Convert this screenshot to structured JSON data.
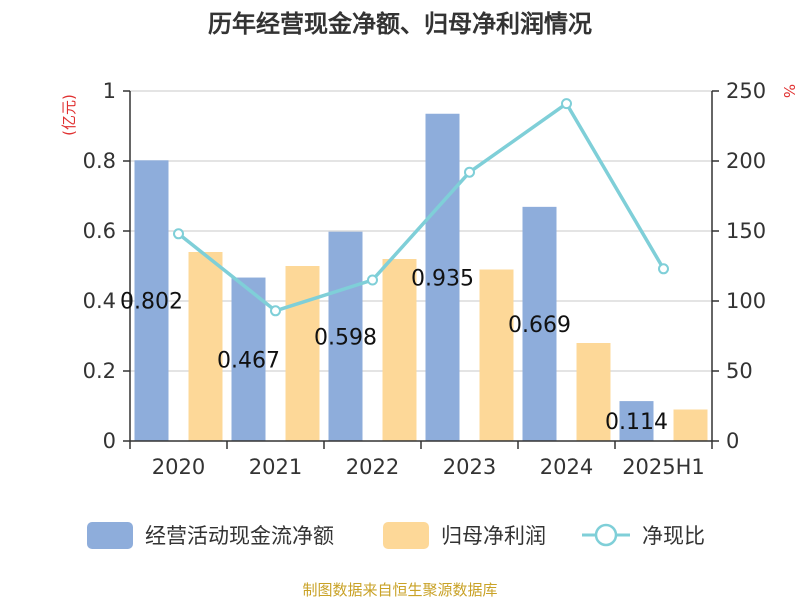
{
  "chart_data": {
    "type": "bar",
    "title": "历年经营现金净额、归母净利润情况",
    "categories": [
      "2020",
      "2021",
      "2022",
      "2023",
      "2024",
      "2025H1"
    ],
    "series": [
      {
        "name": "经营活动现金流净额",
        "type": "bar",
        "axis": "left",
        "color": "#8eaddb",
        "values": [
          0.802,
          0.467,
          0.598,
          0.935,
          0.669,
          0.114
        ]
      },
      {
        "name": "归母净利润",
        "type": "bar",
        "axis": "left",
        "color": "#fdd898",
        "values": [
          0.54,
          0.5,
          0.52,
          0.49,
          0.28,
          0.09
        ]
      },
      {
        "name": "净现比",
        "type": "line",
        "axis": "right",
        "color": "#7fcfd8",
        "values": [
          148,
          93,
          115,
          192,
          241,
          123
        ]
      }
    ],
    "data_labels": [
      "0.802",
      "0.467",
      "0.598",
      "0.935",
      "0.669",
      "0.114"
    ],
    "y_left": {
      "unit": "(亿元)",
      "ylim": [
        0,
        1
      ],
      "ticks": [
        "0",
        "0.2",
        "0.4",
        "0.6",
        "0.8",
        "1"
      ]
    },
    "y_right": {
      "unit": "%",
      "ylim": [
        0,
        250
      ],
      "ticks": [
        "0",
        "50",
        "100",
        "150",
        "200",
        "250"
      ]
    },
    "grid": true,
    "legend": "bottom"
  },
  "source_note": "制图数据来自恒生聚源数据库"
}
